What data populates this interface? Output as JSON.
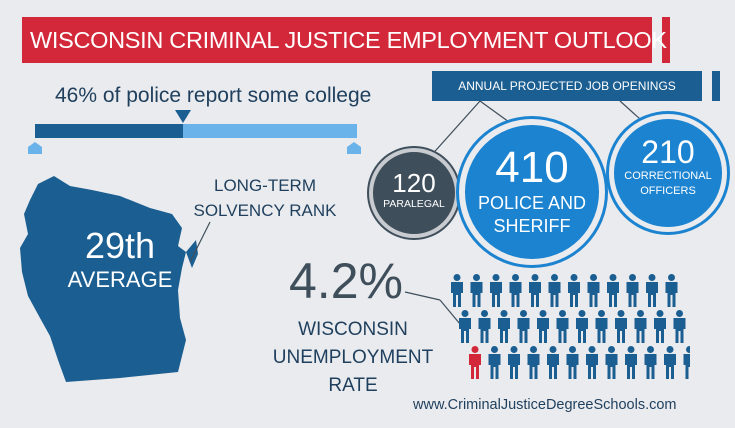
{
  "title": "WISCONSIN CRIMINAL JUSTICE EMPLOYMENT OUTLOOK",
  "college_stat": {
    "text": "46% of police report some college",
    "percent": 46
  },
  "solvency": {
    "label_line1": "LONG-TERM",
    "label_line2": "SOLVENCY RANK",
    "rank": "29th",
    "rank_sub": "AVERAGE"
  },
  "jobs": {
    "banner": "ANNUAL PROJECTED JOB OPENINGS",
    "paralegal": {
      "value": "120",
      "label": "PARALEGAL"
    },
    "police": {
      "value": "410",
      "label_line1": "POLICE AND",
      "label_line2": "SHERIFF"
    },
    "correctional": {
      "value": "210",
      "label_line1": "CORRECTIONAL",
      "label_line2": "OFFICERS"
    }
  },
  "unemployment": {
    "value": "4.2%",
    "label_line1": "WISCONSIN",
    "label_line2": "UNEMPLOYMENT",
    "label_line3": "RATE",
    "people_total": 36,
    "people_highlighted": 1
  },
  "website": "www.CriminalJusticeDegreeSchools.com",
  "colors": {
    "red": "#d3283a",
    "navy": "#1b5e91",
    "light_blue": "#69b3ea",
    "bright_blue": "#1b83d0",
    "slate": "#3f4e5b",
    "map": "#1b5e91"
  }
}
